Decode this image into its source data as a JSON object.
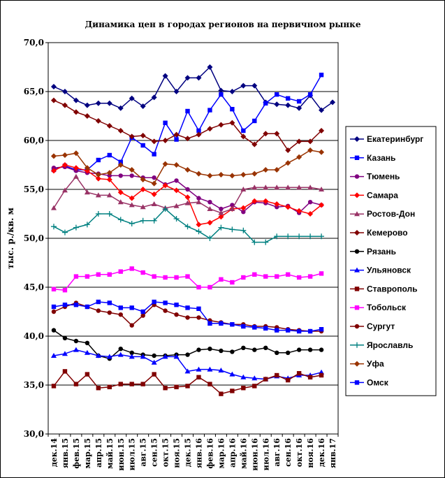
{
  "chart_data": {
    "type": "line",
    "title": "Динамика цен в городах регионов на первичном рынке",
    "ylabel": "тыс. р./кв. м",
    "xlabel": "",
    "ylim": [
      30,
      70
    ],
    "yticks": [
      "30,0",
      "35,0",
      "40,0",
      "45,0",
      "50,0",
      "55,0",
      "60,0",
      "65,0",
      "70,0"
    ],
    "grid": "horizontal",
    "legend_position": "right",
    "x": [
      "дек.14",
      "янв.15",
      "фев.15",
      "мар.15",
      "апр.15",
      "май.15",
      "июн.15",
      "июл.15",
      "авг.15",
      "сен.15",
      "окт.15",
      "ноя.15",
      "дек.15",
      "янв.16",
      "фев.16",
      "мар.16",
      "апр.16",
      "май.16",
      "июн.16",
      "июл.16",
      "авг.16",
      "сен.16",
      "окт.16",
      "ноя.16",
      "дек.16",
      "янв.17"
    ],
    "series": [
      {
        "name": "Екатеринбург",
        "color": "#000080",
        "marker": "diamond",
        "values": [
          65.5,
          65.0,
          64.1,
          63.6,
          63.8,
          63.8,
          63.3,
          64.3,
          63.5,
          64.4,
          66.6,
          65.0,
          66.4,
          66.4,
          67.5,
          65.1,
          65.0,
          65.6,
          65.6,
          63.9,
          63.7,
          63.6,
          63.3,
          64.6,
          63.1,
          63.9
        ]
      },
      {
        "name": "Казань",
        "color": "#0000FF",
        "marker": "square",
        "values": [
          57.0,
          57.4,
          57.0,
          57.0,
          58.0,
          58.5,
          57.8,
          60.3,
          59.5,
          58.6,
          61.8,
          60.1,
          63.0,
          61.0,
          63.1,
          64.7,
          63.2,
          61.0,
          62.0,
          63.8,
          64.7,
          64.3,
          64.0,
          64.7,
          66.7,
          null
        ]
      },
      {
        "name": "Тюмень",
        "color": "#800080",
        "marker": "circle",
        "values": [
          57.2,
          57.3,
          56.9,
          56.7,
          56.6,
          56.4,
          56.4,
          56.4,
          56.2,
          56.2,
          55.5,
          55.9,
          55.0,
          54.1,
          53.7,
          53.0,
          53.4,
          52.7,
          53.7,
          53.6,
          53.2,
          53.3,
          52.6,
          53.7,
          53.4,
          null
        ]
      },
      {
        "name": "Самара",
        "color": "#FF0000",
        "marker": "diamond",
        "values": [
          56.9,
          57.5,
          57.2,
          56.9,
          56.1,
          56.0,
          54.7,
          54.1,
          55.0,
          54.5,
          55.4,
          54.9,
          54.2,
          51.4,
          51.6,
          52.2,
          53.0,
          53.1,
          53.8,
          53.8,
          53.5,
          53.2,
          52.8,
          52.5,
          53.4,
          null
        ]
      },
      {
        "name": "Ростов-Дон",
        "color": "#993366",
        "marker": "triangle",
        "values": [
          53.1,
          54.9,
          56.3,
          54.7,
          54.4,
          54.4,
          53.7,
          53.4,
          53.2,
          53.5,
          53.1,
          53.3,
          53.6,
          53.7,
          53.0,
          52.6,
          53.0,
          55.0,
          55.2,
          55.2,
          55.2,
          55.2,
          55.2,
          55.2,
          55.0,
          null
        ]
      },
      {
        "name": "Кемерово",
        "color": "#800000",
        "marker": "diamond",
        "values": [
          64.1,
          63.6,
          62.9,
          62.5,
          62.0,
          61.5,
          61.0,
          60.4,
          60.5,
          59.9,
          60.0,
          60.6,
          60.2,
          60.6,
          61.2,
          61.6,
          61.8,
          60.4,
          59.6,
          60.7,
          60.7,
          59.0,
          59.9,
          59.9,
          61.0,
          null
        ]
      },
      {
        "name": "Рязань",
        "color": "#000000",
        "marker": "circle",
        "values": [
          40.6,
          39.8,
          39.5,
          39.3,
          38.0,
          37.7,
          38.7,
          38.3,
          38.1,
          38.0,
          38.0,
          38.1,
          38.1,
          38.6,
          38.7,
          38.5,
          38.4,
          38.8,
          38.6,
          38.8,
          38.3,
          38.3,
          38.6,
          38.6,
          38.6,
          null
        ]
      },
      {
        "name": "Ульяновск",
        "color": "#0000FF",
        "marker": "triangle",
        "values": [
          38.0,
          38.2,
          38.6,
          38.3,
          38.0,
          37.9,
          38.1,
          37.9,
          37.9,
          37.3,
          37.9,
          37.9,
          36.4,
          36.6,
          36.6,
          36.5,
          36.1,
          35.8,
          35.7,
          35.6,
          35.9,
          35.7,
          36.0,
          36.0,
          36.3,
          null
        ]
      },
      {
        "name": "Ставрополь",
        "color": "#800000",
        "marker": "square",
        "values": [
          34.9,
          36.4,
          35.1,
          36.1,
          34.7,
          34.8,
          35.1,
          35.1,
          35.1,
          36.1,
          34.7,
          34.8,
          34.9,
          35.8,
          35.1,
          34.1,
          34.4,
          34.7,
          34.9,
          35.6,
          36.0,
          35.5,
          36.2,
          35.8,
          36.0,
          null
        ]
      },
      {
        "name": "Тобольск",
        "color": "#FF00FF",
        "marker": "square",
        "values": [
          44.8,
          44.7,
          46.1,
          46.1,
          46.3,
          46.3,
          46.6,
          46.9,
          46.5,
          46.1,
          46.0,
          46.0,
          46.1,
          45.0,
          45.0,
          45.8,
          45.5,
          46.0,
          46.3,
          46.1,
          46.1,
          46.3,
          46.0,
          46.1,
          46.4,
          null
        ]
      },
      {
        "name": "Сургут",
        "color": "#800000",
        "marker": "circle",
        "values": [
          42.5,
          43.0,
          43.4,
          43.0,
          42.6,
          42.4,
          42.2,
          41.1,
          42.1,
          43.2,
          42.6,
          42.2,
          41.9,
          41.9,
          41.6,
          41.4,
          41.2,
          41.2,
          41.0,
          41.0,
          40.9,
          40.7,
          40.6,
          40.5,
          40.5,
          null
        ]
      },
      {
        "name": "Ярославль",
        "color": "#008080",
        "marker": "plus",
        "values": [
          51.2,
          50.6,
          51.1,
          51.4,
          52.5,
          52.5,
          51.9,
          51.5,
          51.8,
          51.8,
          53.0,
          52.0,
          51.2,
          50.7,
          50.0,
          51.1,
          50.9,
          50.8,
          49.6,
          49.6,
          50.2,
          50.2,
          50.2,
          50.2,
          50.2,
          null
        ]
      },
      {
        "name": "Уфа",
        "color": "#993300",
        "marker": "diamond",
        "values": [
          58.4,
          58.5,
          58.7,
          57.2,
          56.5,
          56.7,
          57.5,
          57.0,
          56.0,
          55.6,
          57.6,
          57.5,
          57.0,
          56.6,
          56.4,
          56.5,
          56.4,
          56.5,
          56.6,
          57.0,
          57.0,
          57.7,
          58.3,
          59.0,
          58.8,
          null
        ]
      },
      {
        "name": "Омск",
        "color": "#0000FF",
        "marker": "square",
        "values": [
          43.0,
          43.2,
          43.2,
          43.0,
          43.5,
          43.4,
          42.9,
          42.9,
          42.5,
          43.5,
          43.4,
          43.2,
          42.9,
          42.8,
          41.3,
          41.3,
          41.2,
          41.0,
          40.9,
          40.8,
          40.6,
          40.6,
          40.5,
          40.5,
          40.7,
          null
        ]
      }
    ]
  }
}
